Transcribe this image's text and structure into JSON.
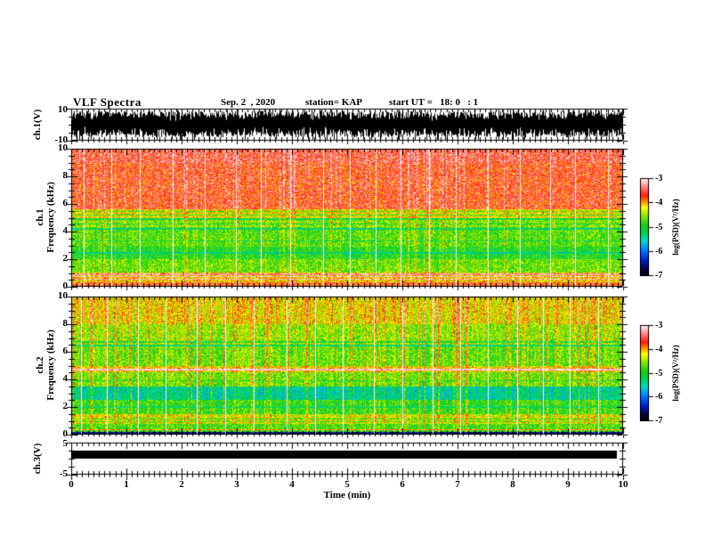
{
  "header": {
    "title": "VLF Spectra",
    "date": "Sep. 2  , 2020",
    "station": "station= KAP",
    "start_ut": "start UT =   18: 0   : 1"
  },
  "panels": {
    "ch1_wave": {
      "label": "ch.1(V)",
      "ymax": "10",
      "ymin": "-10"
    },
    "spec1": {
      "channel": "ch.1",
      "axis": "Frequency (kHz)",
      "yticks": [
        "0",
        "2",
        "4",
        "6",
        "8",
        "10"
      ]
    },
    "spec2": {
      "channel": "ch.2",
      "axis": "Frequency (kHz)",
      "yticks": [
        "0",
        "2",
        "4",
        "6",
        "8",
        "10"
      ]
    },
    "ch3": {
      "label": "ch.3(V)",
      "ymax": "5",
      "ymin": "-5"
    }
  },
  "xaxis": {
    "label": "Time  (min)",
    "ticks": [
      "0",
      "1",
      "2",
      "3",
      "4",
      "5",
      "6",
      "7",
      "8",
      "9",
      "10"
    ]
  },
  "colorbar": {
    "label": "log(PSD)(V²/Hz)",
    "ticks": [
      "-3",
      "-4",
      "-5",
      "-6",
      "-7"
    ],
    "colormap_stops": [
      [
        0.0,
        "#000000"
      ],
      [
        0.07,
        "#0a003c"
      ],
      [
        0.16,
        "#001ec8"
      ],
      [
        0.27,
        "#0082ff"
      ],
      [
        0.36,
        "#00dcc8"
      ],
      [
        0.44,
        "#00d250"
      ],
      [
        0.52,
        "#14cd14"
      ],
      [
        0.62,
        "#96e600"
      ],
      [
        0.7,
        "#ffff00"
      ],
      [
        0.76,
        "#ff8c00"
      ],
      [
        0.82,
        "#ff1e0a"
      ],
      [
        0.9,
        "#ff7878"
      ],
      [
        0.96,
        "#ffc8c8"
      ],
      [
        1.0,
        "#fff0f0"
      ]
    ]
  },
  "colors": {
    "frame": "#000000",
    "background": "#ffffff",
    "waveform": "#000000",
    "ch3_bar": "#000000"
  },
  "chart_data": [
    {
      "type": "line",
      "name": "ch.1 time series",
      "ylabel": "ch.1(V)",
      "xlim": [
        0,
        10
      ],
      "ylim": [
        -10,
        10
      ],
      "description": "dense black broadband noise filling roughly -10 to +10 V continuously over the whole 10 minute record"
    },
    {
      "type": "heatmap",
      "name": "ch.1 spectrogram",
      "ylabel": "Frequency (kHz)",
      "xlim": [
        0,
        10
      ],
      "ylim": [
        0,
        10
      ],
      "zlabel": "log(PSD)(V²/Hz)",
      "zlim": [
        -7,
        -3
      ],
      "seed": 42,
      "noise": 0.9,
      "strong_streak_density": 0.14,
      "mid_streak_density": 0.6,
      "strong_streak_amp": 0.75,
      "gap_spacing": 31,
      "bands": [
        {
          "f0": 0.0,
          "f1": 0.35,
          "psd": -3.8,
          "sw": 0.3
        },
        {
          "f0": 0.35,
          "f1": 1.0,
          "psd": -4.25,
          "sw": 0.4
        },
        {
          "f0": 1.0,
          "f1": 2.0,
          "psd": -4.75,
          "sw": 0.5
        },
        {
          "f0": 2.0,
          "f1": 2.9,
          "psd": -5.05,
          "sw": 0.5
        },
        {
          "f0": 2.9,
          "f1": 4.3,
          "psd": -4.85,
          "sw": 0.6
        },
        {
          "f0": 4.3,
          "f1": 5.0,
          "psd": -4.7,
          "sw": 0.6
        },
        {
          "f0": 5.0,
          "f1": 5.6,
          "psd": -4.35,
          "sw": 0.5
        },
        {
          "f0": 5.6,
          "f1": 9.0,
          "psd": -3.75,
          "sw": 0.5
        },
        {
          "f0": 9.0,
          "f1": 10.0,
          "psd": -3.6,
          "sw": 0.4
        }
      ],
      "lines": [
        {
          "f": 0.55,
          "hw": 0.04,
          "d": 1.0
        },
        {
          "f": 0.72,
          "hw": 0.04,
          "d": 1.05
        },
        {
          "f": 0.9,
          "hw": 0.04,
          "d": 0.85
        },
        {
          "f": 2.45,
          "hw": 0.04,
          "d": -0.4
        },
        {
          "f": 3.3,
          "hw": 0.04,
          "d": -0.35
        },
        {
          "f": 4.2,
          "hw": 0.05,
          "d": -0.55
        },
        {
          "f": 4.55,
          "hw": 0.05,
          "d": -0.5
        },
        {
          "f": 4.9,
          "hw": 0.05,
          "d": -0.55
        },
        {
          "f": 5.2,
          "hw": 0.05,
          "d": -0.6
        },
        {
          "f": 5.45,
          "hw": 0.05,
          "d": -0.5
        }
      ],
      "notes": "red/saturated above ~5.5 kHz with white gap lines about every 0.5 min; green 1-5 kHz; orange-red band below 0.4 kHz; many impulsive vertical streaks (sferics)"
    },
    {
      "type": "heatmap",
      "name": "ch.2 spectrogram",
      "ylabel": "Frequency (kHz)",
      "xlim": [
        0,
        10
      ],
      "ylim": [
        0,
        10
      ],
      "zlabel": "log(PSD)(V²/Hz)",
      "zlim": [
        -7,
        -3
      ],
      "seed": 77,
      "noise": 0.9,
      "strong_streak_density": 0.2,
      "mid_streak_density": 0.65,
      "strong_streak_amp": 0.9,
      "gap_spacing": 31,
      "bands": [
        {
          "f0": 0.0,
          "f1": 0.2,
          "psd": -6.6,
          "sw": 0.2
        },
        {
          "f0": 0.2,
          "f1": 0.75,
          "psd": -4.9,
          "sw": 0.5
        },
        {
          "f0": 0.75,
          "f1": 1.5,
          "psd": -4.5,
          "sw": 0.7
        },
        {
          "f0": 1.5,
          "f1": 2.5,
          "psd": -5.0,
          "sw": 0.7
        },
        {
          "f0": 2.5,
          "f1": 3.5,
          "psd": -5.55,
          "sw": 0.7
        },
        {
          "f0": 3.5,
          "f1": 4.5,
          "psd": -4.8,
          "sw": 0.8
        },
        {
          "f0": 4.5,
          "f1": 4.95,
          "psd": -4.3,
          "sw": 0.6
        },
        {
          "f0": 4.95,
          "f1": 6.5,
          "psd": -4.85,
          "sw": 0.9
        },
        {
          "f0": 6.5,
          "f1": 8.0,
          "psd": -4.7,
          "sw": 0.9
        },
        {
          "f0": 8.0,
          "f1": 10.0,
          "psd": -4.4,
          "sw": 0.9
        }
      ],
      "lines": [
        {
          "f": 0.35,
          "hw": 0.03,
          "d": 0.9
        },
        {
          "f": 0.95,
          "hw": 0.04,
          "d": -0.45
        },
        {
          "f": 1.15,
          "hw": 0.04,
          "d": -0.5
        },
        {
          "f": 2.0,
          "hw": 0.04,
          "d": -0.35
        },
        {
          "f": 3.9,
          "hw": 0.04,
          "d": -0.4
        },
        {
          "f": 4.7,
          "hw": 0.05,
          "d": 1.1
        },
        {
          "f": 6.45,
          "hw": 0.06,
          "d": -0.6
        },
        {
          "f": 6.7,
          "hw": 0.05,
          "d": -0.5
        }
      ],
      "notes": "yellow-green background with strong red vertical streaks; distinct cyan band 2.5-3.5 kHz; white stripe near 4.7 kHz; dark row at the bottom edge"
    },
    {
      "type": "line",
      "name": "ch.3 time series",
      "ylabel": "ch.3(V)",
      "xlim": [
        0,
        10
      ],
      "ylim": [
        -5,
        5
      ],
      "description": "flat saturated trace approximately 0 to +2 V rendered as a solid black bar from 0 to about 9.9 min"
    }
  ]
}
